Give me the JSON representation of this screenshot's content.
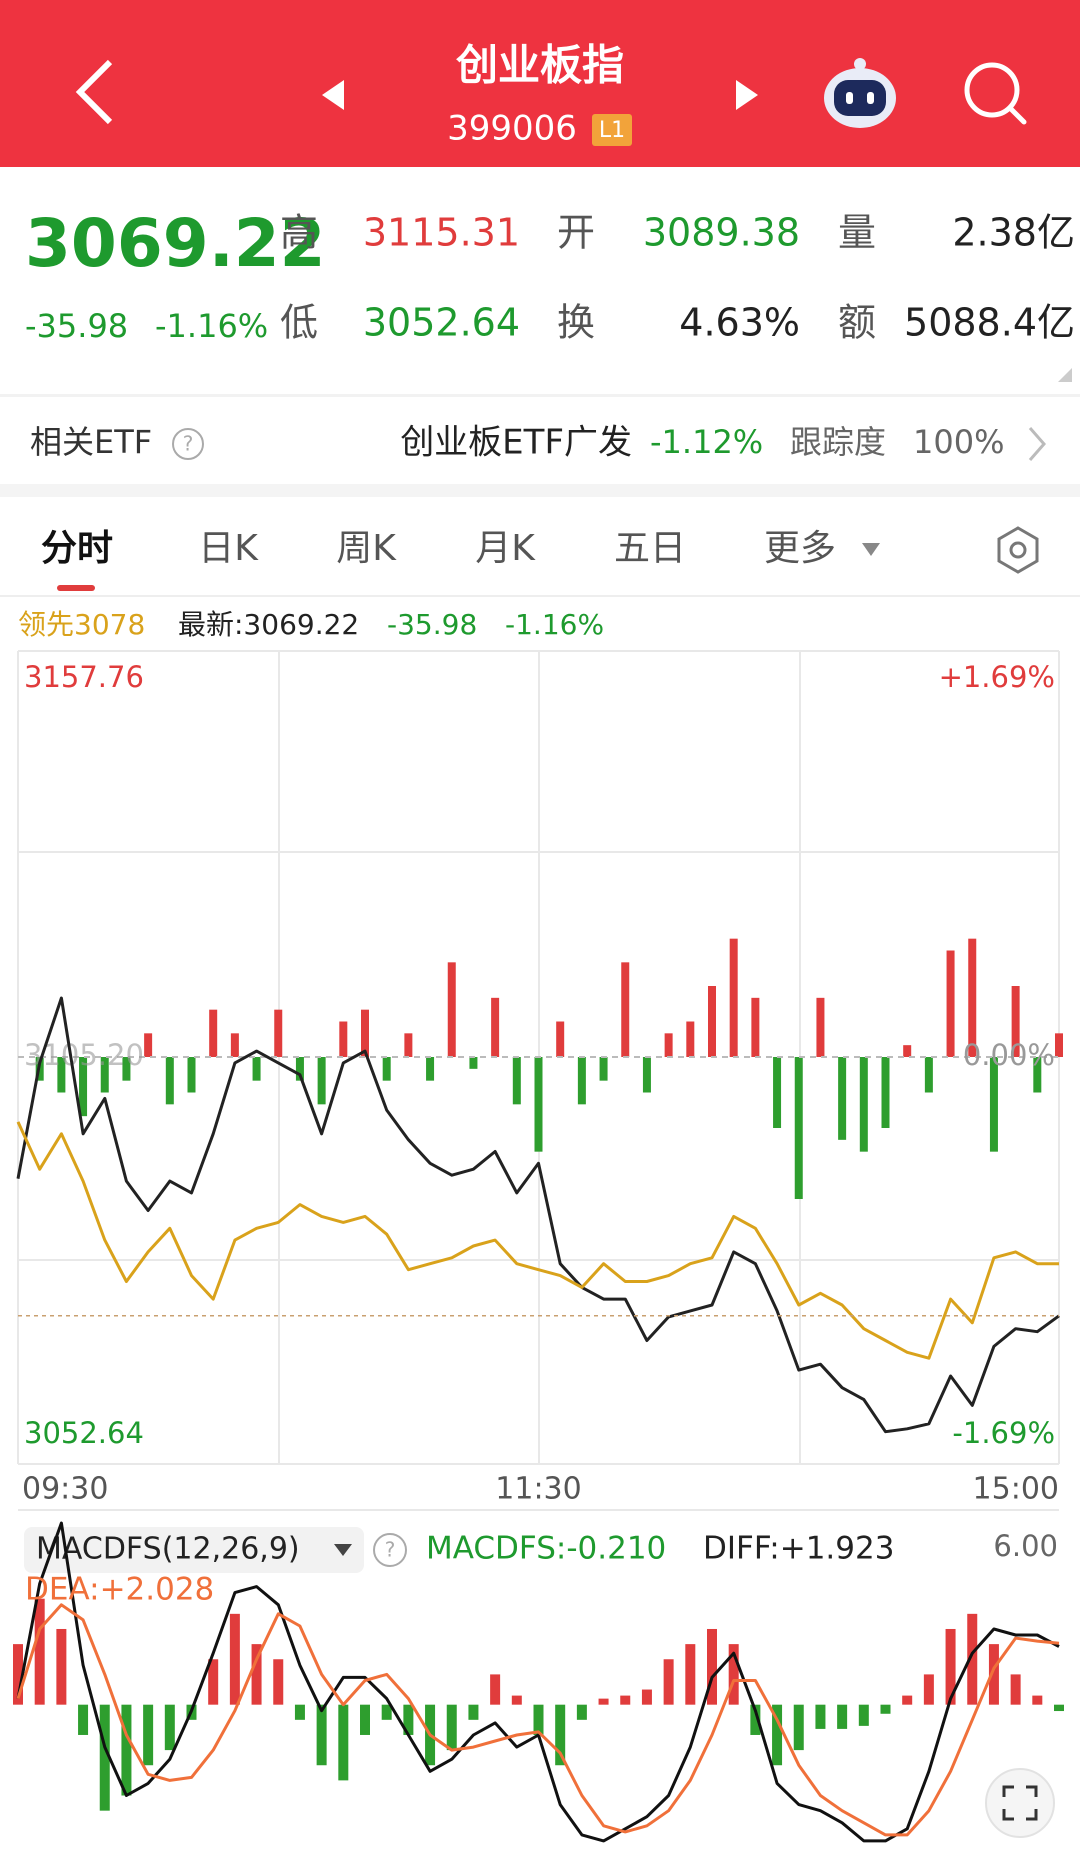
{
  "header": {
    "title": "创业板指",
    "code": "399006",
    "level": "L1"
  },
  "quote": {
    "price": "3069.22",
    "change": "-35.98",
    "pct": "-1.16%",
    "fields": [
      [
        {
          "label": "高",
          "value": "3115.31",
          "color": "#e03c3c"
        },
        {
          "label": "开",
          "value": "3089.38",
          "color": "#1e9a2e"
        },
        {
          "label": "量",
          "value": "2.38亿",
          "color": "#222222"
        }
      ],
      [
        {
          "label": "低",
          "value": "3052.64",
          "color": "#1e9a2e"
        },
        {
          "label": "换",
          "value": "4.63%",
          "color": "#222222"
        },
        {
          "label": "额",
          "value": "5088.4亿",
          "color": "#222222"
        }
      ]
    ]
  },
  "etf": {
    "label": "相关ETF",
    "name": "创业板ETF广发",
    "change": "-1.12%",
    "track_label": "跟踪度",
    "track": "100%"
  },
  "tabs": [
    "分时",
    "日K",
    "周K",
    "月K",
    "五日",
    "更多"
  ],
  "chart_data": [
    {
      "type": "combo",
      "xlim": [
        0,
        240
      ],
      "xticks": [
        {
          "value": 0,
          "label": "09:30"
        },
        {
          "value": 120,
          "label": "11:30"
        },
        {
          "value": 240,
          "label": "15:00"
        }
      ],
      "x": [
        0,
        5,
        10,
        15,
        20,
        25,
        30,
        35,
        40,
        45,
        50,
        55,
        60,
        65,
        70,
        75,
        80,
        85,
        90,
        95,
        100,
        105,
        110,
        115,
        120,
        125,
        130,
        135,
        140,
        145,
        150,
        155,
        160,
        165,
        170,
        175,
        180,
        185,
        190,
        195,
        200,
        205,
        210,
        215,
        220,
        225,
        230,
        235,
        240
      ],
      "ylim": [
        3052.64,
        3157.76
      ],
      "yticks": [
        3157.76,
        {
          "value": 3105.2,
          "label": "3105.20"
        },
        3052.64
      ],
      "y2lim": [
        -1.69,
        1.69
      ],
      "y2ticks": [
        {
          "value": 1.69,
          "label": "+1.69%"
        },
        {
          "value": 0,
          "label": "0.00%"
        },
        {
          "value": -1.69,
          "label": "-1.69%"
        }
      ],
      "change": "-35.98",
      "pct": "-1.16%",
      "series": [
        {
          "name": "最新:3069.22",
          "type": "line",
          "color": "#222222",
          "values": [
            3088.28,
            3104.38,
            3113.41,
            3094.52,
            3099.45,
            3087.95,
            3083.85,
            3087.95,
            3086.31,
            3094.52,
            3104.38,
            3106.02,
            3104.38,
            3102.74,
            3094.52,
            3104.38,
            3106.02,
            3097.81,
            3093.7,
            3090.42,
            3088.77,
            3089.6,
            3092.06,
            3086.31,
            3090.42,
            3076.46,
            3073.17,
            3071.53,
            3071.53,
            3065.78,
            3069.06,
            3069.89,
            3070.71,
            3078.1,
            3076.46,
            3069.89,
            3061.67,
            3062.49,
            3059.21,
            3057.57,
            3053.1,
            3053.5,
            3054.2,
            3060.85,
            3056.75,
            3064.96,
            3067.42,
            3067.0,
            3069.22
          ]
        },
        {
          "name": "领先3078",
          "type": "line",
          "color": "#d9a21b",
          "values": [
            3096.17,
            3089.6,
            3094.52,
            3087.95,
            3079.74,
            3073.99,
            3078.1,
            3081.38,
            3074.81,
            3071.53,
            3079.74,
            3081.38,
            3082.2,
            3084.67,
            3083.03,
            3082.2,
            3083.03,
            3080.56,
            3075.63,
            3076.46,
            3077.28,
            3078.92,
            3079.74,
            3076.46,
            3075.63,
            3074.81,
            3073.17,
            3076.46,
            3073.99,
            3073.99,
            3074.81,
            3076.46,
            3077.28,
            3083.03,
            3081.38,
            3076.46,
            3070.71,
            3072.35,
            3070.71,
            3067.42,
            3065.78,
            3064.14,
            3063.32,
            3071.53,
            3068.24,
            3077.28,
            3078.1,
            3076.46,
            3076.46
          ]
        },
        {
          "type": "bar",
          "color": "#e03c3c",
          "negative_color": "#2e9e2e",
          "ylim": [
            -12,
            12
          ],
          "values": [
            0,
            -2,
            -3,
            -5,
            -3,
            -2,
            2,
            -4,
            -3,
            4,
            2,
            -2,
            4,
            -2,
            -4,
            3,
            4,
            -2,
            2,
            -2,
            8,
            -1,
            5,
            -4,
            -8,
            3,
            -4,
            -2,
            8,
            -3,
            2,
            3,
            6,
            10,
            5,
            -6,
            -12,
            5,
            -7,
            -8,
            -6,
            1,
            -3,
            9,
            10,
            -8,
            6,
            -3,
            2
          ]
        }
      ]
    },
    {
      "type": "macd",
      "title": "MACDFS(12,26,9)",
      "xlim": [
        0,
        240
      ],
      "x": [
        0,
        5,
        10,
        15,
        20,
        25,
        30,
        35,
        40,
        45,
        50,
        55,
        60,
        65,
        70,
        75,
        80,
        85,
        90,
        95,
        100,
        105,
        110,
        115,
        120,
        125,
        130,
        135,
        140,
        145,
        150,
        155,
        160,
        165,
        170,
        175,
        180,
        185,
        190,
        195,
        200,
        205,
        210,
        215,
        220,
        225,
        230,
        235,
        240
      ],
      "ylim": [
        -4.7,
        6
      ],
      "yticks": [
        {
          "value": 6,
          "label": "6.00"
        }
      ],
      "series": [
        {
          "name": "MACDFS:-0.210",
          "type": "bar",
          "color": "#e03c3c",
          "negative_color": "#2e9e2e",
          "label_color": "#1e9a2e",
          "values": [
            2,
            3.5,
            2.5,
            -1,
            -3.5,
            -3,
            -2,
            -1.5,
            -0.5,
            1.5,
            3,
            2,
            1.5,
            -0.5,
            -2,
            -2.5,
            -1,
            -0.5,
            -1,
            -2,
            -1.5,
            -0.5,
            1,
            0.3,
            -1,
            -2,
            -0.5,
            0.2,
            0.3,
            0.5,
            1.5,
            2,
            2.5,
            2,
            -1,
            -2,
            -1.5,
            -0.8,
            -0.8,
            -0.7,
            -0.3,
            0.3,
            1,
            2.5,
            3,
            2,
            1,
            0.3,
            -0.21
          ]
        },
        {
          "name": "DIFF:+1.923",
          "type": "line",
          "color": "#111111",
          "label_color": "#222222",
          "values": [
            0.2,
            4,
            6,
            1.3,
            -1.4,
            -3,
            -2.6,
            -1.8,
            -0.2,
            1.7,
            3.7,
            3.9,
            3.3,
            1.3,
            -0.2,
            0.9,
            0.9,
            0.2,
            -1,
            -2.2,
            -1.8,
            -1,
            -0.6,
            -1.4,
            -1,
            -3.3,
            -4.3,
            -4.5,
            -4.1,
            -3.7,
            -3,
            -1.4,
            0.9,
            1.7,
            -0.2,
            -2.6,
            -3.3,
            -3.5,
            -3.9,
            -4.5,
            -4.5,
            -4.1,
            -2.2,
            0.2,
            1.7,
            2.5,
            2.3,
            2.3,
            1.923
          ]
        },
        {
          "name": "DEA:+2.028",
          "type": "line",
          "color": "#f0703a",
          "label_color": "#f0703a",
          "values": [
            0.2,
            2.5,
            3.3,
            2.8,
            1,
            -1,
            -2.3,
            -2.5,
            -2.4,
            -1.5,
            -0.2,
            1.5,
            3,
            2.6,
            1,
            0,
            0.8,
            1,
            0.2,
            -1,
            -1.5,
            -1.4,
            -1.2,
            -1,
            -0.9,
            -1.6,
            -3,
            -4,
            -4.2,
            -4,
            -3.5,
            -2.5,
            -1,
            0.8,
            0.8,
            -0.5,
            -2,
            -3,
            -3.5,
            -3.9,
            -4.3,
            -4.3,
            -3.5,
            -2.2,
            -0.5,
            1.2,
            2.2,
            2.1,
            2.028
          ]
        }
      ]
    }
  ]
}
